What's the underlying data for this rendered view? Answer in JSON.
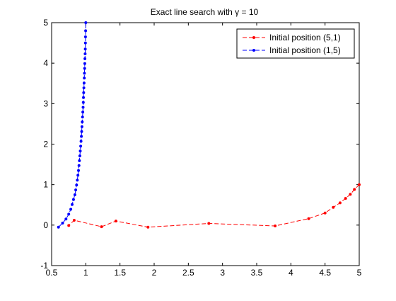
{
  "chart_data": {
    "type": "line",
    "title": "Exact line search with γ = 10",
    "xlabel": "",
    "ylabel": "",
    "xlim": [
      0.5,
      5
    ],
    "ylim": [
      -1,
      5
    ],
    "xticks": [
      0.5,
      1,
      1.5,
      2,
      2.5,
      3,
      3.5,
      4,
      4.5,
      5
    ],
    "xtick_labels": [
      "0.5",
      "1",
      "1.5",
      "2",
      "2.5",
      "3",
      "3.5",
      "4",
      "4.5",
      "5"
    ],
    "yticks": [
      -1,
      0,
      1,
      2,
      3,
      4,
      5
    ],
    "ytick_labels": [
      "-1",
      "0",
      "1",
      "2",
      "3",
      "4",
      "5"
    ],
    "grid": false,
    "legend_position": "top-right",
    "series": [
      {
        "name": "Initial position (5,1)",
        "color": "#ff0000",
        "linestyle": "dashed",
        "marker": "dot",
        "x": [
          5.0,
          4.93,
          4.87,
          4.8,
          4.72,
          4.62,
          4.5,
          4.26,
          3.77,
          2.8,
          1.91,
          1.44,
          1.23,
          0.83,
          0.75
        ],
        "y": [
          1.0,
          0.88,
          0.76,
          0.66,
          0.55,
          0.44,
          0.3,
          0.16,
          -0.02,
          0.04,
          -0.05,
          0.1,
          -0.04,
          0.12,
          -0.01
        ]
      },
      {
        "name": "Initial position (1,5)",
        "color": "#0000ff",
        "linestyle": "dashed",
        "marker": "dot",
        "x": [
          0.6,
          0.66,
          0.71,
          0.75,
          0.78,
          0.8,
          0.82,
          0.84,
          0.853,
          0.865,
          0.875,
          0.885,
          0.893,
          0.9,
          0.907,
          0.913,
          0.919,
          0.925,
          0.93,
          0.935,
          0.94,
          0.944,
          0.948,
          0.952,
          0.956,
          0.96,
          0.963,
          0.966,
          0.969,
          0.972,
          0.975,
          0.978,
          0.98,
          0.983,
          0.985,
          0.987,
          0.99,
          0.992,
          0.994,
          0.996,
          0.998,
          1.0
        ],
        "y": [
          -0.05,
          0.05,
          0.15,
          0.27,
          0.39,
          0.51,
          0.63,
          0.75,
          0.87,
          0.99,
          1.11,
          1.23,
          1.35,
          1.47,
          1.59,
          1.71,
          1.83,
          1.95,
          2.07,
          2.19,
          2.31,
          2.43,
          2.55,
          2.67,
          2.79,
          2.91,
          3.03,
          3.15,
          3.27,
          3.39,
          3.51,
          3.63,
          3.75,
          3.87,
          3.99,
          4.11,
          4.23,
          4.35,
          4.5,
          4.65,
          4.8,
          5.0
        ]
      }
    ]
  }
}
